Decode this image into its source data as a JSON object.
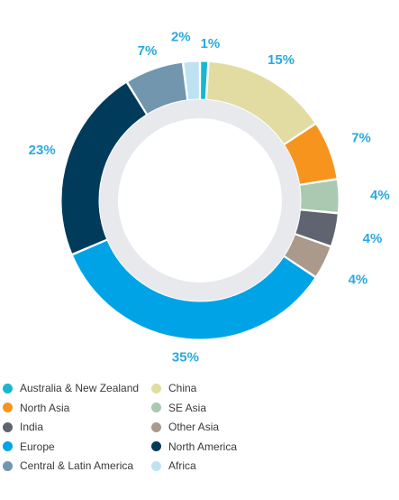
{
  "chart_data": {
    "type": "pie",
    "variant": "donut",
    "title": "",
    "slices": [
      {
        "label": "Australia & New Zealand",
        "value": 1,
        "display": "1%",
        "color": "#1ab6d1"
      },
      {
        "label": "China",
        "value": 15,
        "display": "15%",
        "color": "#e2dca3"
      },
      {
        "label": "North Asia",
        "value": 7,
        "display": "7%",
        "color": "#f7941d"
      },
      {
        "label": "SE Asia",
        "value": 4,
        "display": "4%",
        "color": "#a9c9b0"
      },
      {
        "label": "India",
        "value": 4,
        "display": "4%",
        "color": "#5f6470"
      },
      {
        "label": "Other Asia",
        "value": 4,
        "display": "4%",
        "color": "#ab9a8c"
      },
      {
        "label": "Europe",
        "value": 35,
        "display": "35%",
        "color": "#00a3e6"
      },
      {
        "label": "North America",
        "value": 23,
        "display": "23%",
        "color": "#003b5c"
      },
      {
        "label": "Central & Latin America",
        "value": 7,
        "display": "7%",
        "color": "#7196ad"
      },
      {
        "label": "Africa",
        "value": 2,
        "display": "2%",
        "color": "#bfe2f2"
      }
    ],
    "legend_placement": "bottom",
    "legend_order": [
      "Australia & New Zealand",
      "China",
      "North Asia",
      "SE Asia",
      "India",
      "Other Asia",
      "Europe",
      "North America",
      "Central & Latin America",
      "Africa"
    ],
    "label_color": "#29a9e0",
    "inner_ring_color": "#e7e9ec"
  }
}
